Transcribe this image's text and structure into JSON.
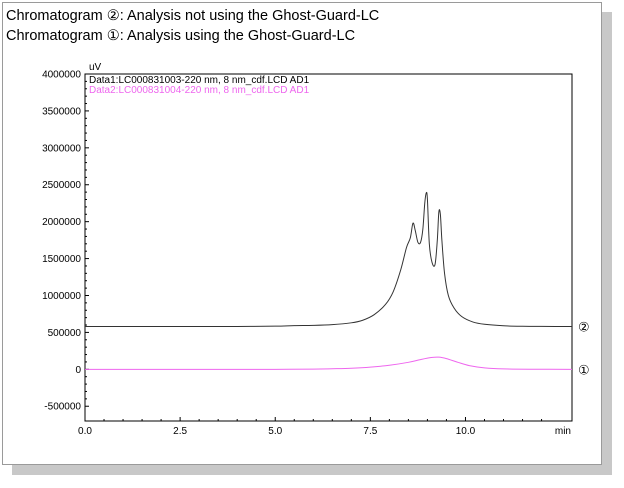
{
  "captions": {
    "line1": "Chromatogram ②: Analysis not using the Ghost-Guard-LC",
    "line2": "Chromatogram ①: Analysis using the Ghost-Guard-LC"
  },
  "chart_data": {
    "type": "line",
    "y_unit_label": "uV",
    "x_unit_label": "min",
    "xlim": [
      0,
      12.8
    ],
    "ylim": [
      -700000,
      4000000
    ],
    "x_ticks": [
      0.0,
      2.5,
      5.0,
      7.5,
      10.0
    ],
    "x_tick_labels": [
      "0.0",
      "2.5",
      "5.0",
      "7.5",
      "10.0"
    ],
    "y_ticks": [
      4000000,
      3500000,
      3000000,
      2500000,
      2000000,
      1500000,
      1000000,
      500000,
      0,
      -500000
    ],
    "y_tick_labels": [
      "4000000",
      "3500000",
      "3000000",
      "2500000",
      "2000000",
      "1500000",
      "1000000",
      "500000",
      "0",
      "-500000"
    ],
    "grid": false,
    "legend_position": "top-left",
    "series": [
      {
        "name": "Data1:LC000831003-220 nm, 8 nm_cdf.LCD AD1",
        "color": "#333333",
        "end_label": "②",
        "x": [
          0,
          1,
          2,
          3,
          4,
          5,
          5.5,
          6,
          6.5,
          7,
          7.3,
          7.6,
          7.9,
          8.1,
          8.3,
          8.45,
          8.55,
          8.62,
          8.68,
          8.75,
          8.82,
          8.88,
          8.93,
          8.97,
          9.0,
          9.05,
          9.12,
          9.2,
          9.26,
          9.3,
          9.34,
          9.38,
          9.45,
          9.55,
          9.7,
          9.9,
          10.2,
          10.5,
          11,
          11.5,
          12,
          12.8
        ],
        "y": [
          580000,
          580000,
          580000,
          580000,
          580000,
          585000,
          592000,
          595000,
          605000,
          630000,
          665000,
          740000,
          880000,
          1050000,
          1350000,
          1650000,
          1780000,
          1980000,
          1880000,
          1720000,
          1720000,
          1900000,
          2250000,
          2390000,
          2300000,
          1700000,
          1450000,
          1420000,
          1750000,
          2130000,
          2100000,
          1750000,
          1300000,
          1000000,
          830000,
          715000,
          640000,
          610000,
          590000,
          583000,
          581000,
          580000
        ]
      },
      {
        "name": "Data2:LC000831004-220 nm, 8 nm_cdf.LCD AD1",
        "color": "#ee66ee",
        "end_label": "①",
        "x": [
          0,
          1,
          2,
          3,
          4,
          5,
          6,
          6.5,
          7,
          7.5,
          8,
          8.5,
          8.8,
          9.1,
          9.3,
          9.5,
          9.8,
          10.1,
          10.5,
          11,
          12,
          12.8
        ],
        "y": [
          0,
          0,
          0,
          0,
          0,
          0,
          3000,
          8000,
          15000,
          30000,
          55000,
          95000,
          130000,
          160000,
          165000,
          145000,
          95000,
          50000,
          20000,
          6000,
          1000,
          0
        ]
      }
    ]
  }
}
